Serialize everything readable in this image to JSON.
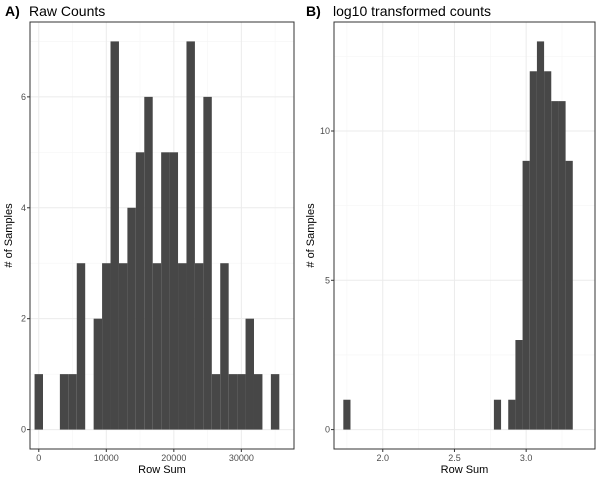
{
  "panels": [
    {
      "letter": "A)",
      "title": "Raw Counts",
      "xlabel": "Row Sum",
      "ylabel": "# of Samples"
    },
    {
      "letter": "B)",
      "title": "log10 transformed counts",
      "xlabel": "Row Sum",
      "ylabel": "# of Samples"
    }
  ],
  "colors": {
    "bar": "#474747",
    "grid_major": "#ebebeb",
    "grid_minor": "#f5f5f5",
    "border": "#333333",
    "tick_text": "#4d4d4d"
  },
  "chart_data": [
    {
      "type": "bar",
      "title": "Raw Counts",
      "xlabel": "Row Sum",
      "ylabel": "# of Samples",
      "bin_width": 1250,
      "bin_start": -625,
      "values": [
        1,
        0,
        0,
        1,
        1,
        3,
        0,
        2,
        3,
        7,
        3,
        4,
        5,
        6,
        3,
        5,
        5,
        3,
        7,
        3,
        6,
        1,
        3,
        1,
        1,
        2,
        1,
        0,
        1
      ],
      "xticks": [
        0,
        10000,
        20000,
        30000
      ],
      "xtick_labels": [
        "0",
        "10000",
        "20000",
        "30000"
      ],
      "yticks": [
        0,
        2,
        4,
        6
      ],
      "xlim": [
        -1300,
        37800
      ],
      "ylim": [
        -0.35,
        7.35
      ],
      "grid": true
    },
    {
      "type": "bar",
      "title": "log10 transformed counts",
      "xlabel": "Row Sum",
      "ylabel": "# of Samples",
      "bin_width": 0.05,
      "bin_start": 1.725,
      "values": [
        1,
        0,
        0,
        0,
        0,
        0,
        0,
        0,
        0,
        0,
        0,
        0,
        0,
        0,
        0,
        0,
        0,
        0,
        0,
        0,
        0,
        1,
        0,
        1,
        3,
        9,
        12,
        13,
        12,
        11,
        11,
        9
      ],
      "xticks": [
        2.0,
        2.5,
        3.0
      ],
      "xtick_labels": [
        "2.0",
        "2.5",
        "3.0"
      ],
      "yticks": [
        0,
        5,
        10
      ],
      "ylim": [
        -0.65,
        13.65
      ],
      "xlim": [
        1.66,
        3.48
      ],
      "grid": true
    }
  ]
}
